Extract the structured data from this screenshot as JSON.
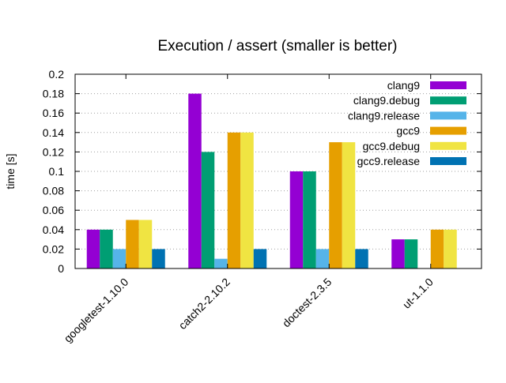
{
  "chart_data": {
    "type": "bar",
    "title": "Execution / assert (smaller is better)",
    "xlabel": "",
    "ylabel": "time [s]",
    "ylim": [
      0,
      0.2
    ],
    "yticks": [
      "0",
      "0.02",
      "0.04",
      "0.06",
      "0.08",
      "0.1",
      "0.12",
      "0.14",
      "0.16",
      "0.18",
      "0.2"
    ],
    "grid": "horizontal dotted",
    "legend_position": "top-right",
    "categories": [
      "googletest-1.10.0",
      "catch2-2.10.2",
      "doctest-2.3.5",
      "ut-1.1.0"
    ],
    "series": [
      {
        "name": "clang9",
        "color": "#9400d3",
        "values": [
          0.04,
          0.18,
          0.1,
          0.03
        ]
      },
      {
        "name": "clang9.debug",
        "color": "#009e73",
        "values": [
          0.04,
          0.12,
          0.1,
          0.03
        ]
      },
      {
        "name": "clang9.release",
        "color": "#56b4e9",
        "values": [
          0.02,
          0.01,
          0.02,
          0
        ]
      },
      {
        "name": "gcc9",
        "color": "#e69f00",
        "values": [
          0.05,
          0.14,
          0.13,
          0.04
        ]
      },
      {
        "name": "gcc9.debug",
        "color": "#f0e442",
        "values": [
          0.05,
          0.14,
          0.13,
          0.04
        ]
      },
      {
        "name": "gcc9.release",
        "color": "#0072b2",
        "values": [
          0.02,
          0.02,
          0.02,
          0
        ]
      }
    ]
  }
}
